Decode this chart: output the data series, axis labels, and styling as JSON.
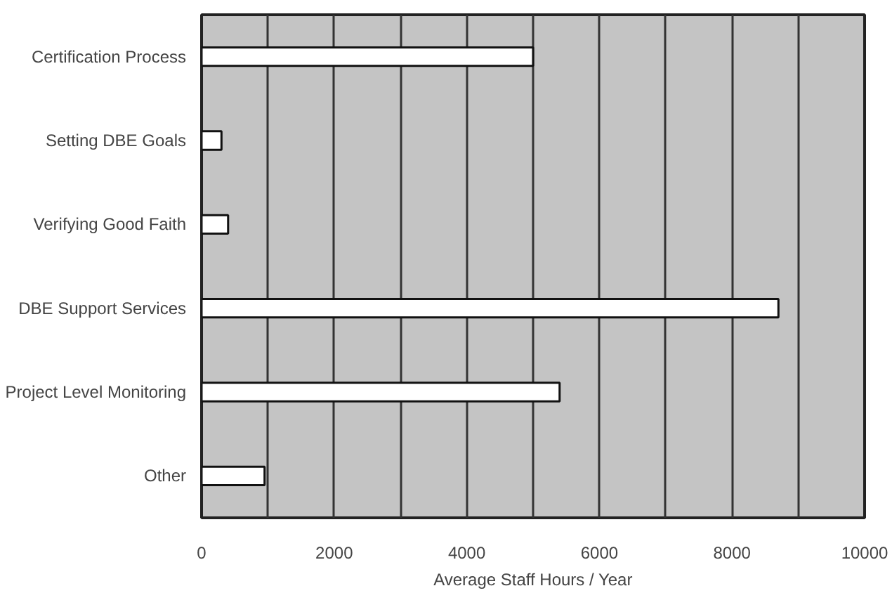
{
  "chart_data": {
    "type": "bar",
    "orientation": "horizontal",
    "xlabel": "Average Staff Hours / Year",
    "categories": [
      "Certification Process",
      "Setting DBE Goals",
      "Verifying Good Faith",
      "DBE Support Services",
      "Project Level Monitoring",
      "Other"
    ],
    "values": [
      5000,
      300,
      400,
      8700,
      5400,
      950
    ],
    "color": "#ffffff",
    "xlim": [
      0,
      10000
    ],
    "xticks": [
      0,
      {
        "value": 1000,
        "label": null
      },
      2000,
      {
        "value": 3000,
        "label": null
      },
      4000,
      {
        "value": 5000,
        "label": null
      },
      6000,
      {
        "value": 7000,
        "label": null
      },
      8000,
      {
        "value": 9000,
        "label": null
      },
      10000
    ],
    "grid": "x"
  }
}
